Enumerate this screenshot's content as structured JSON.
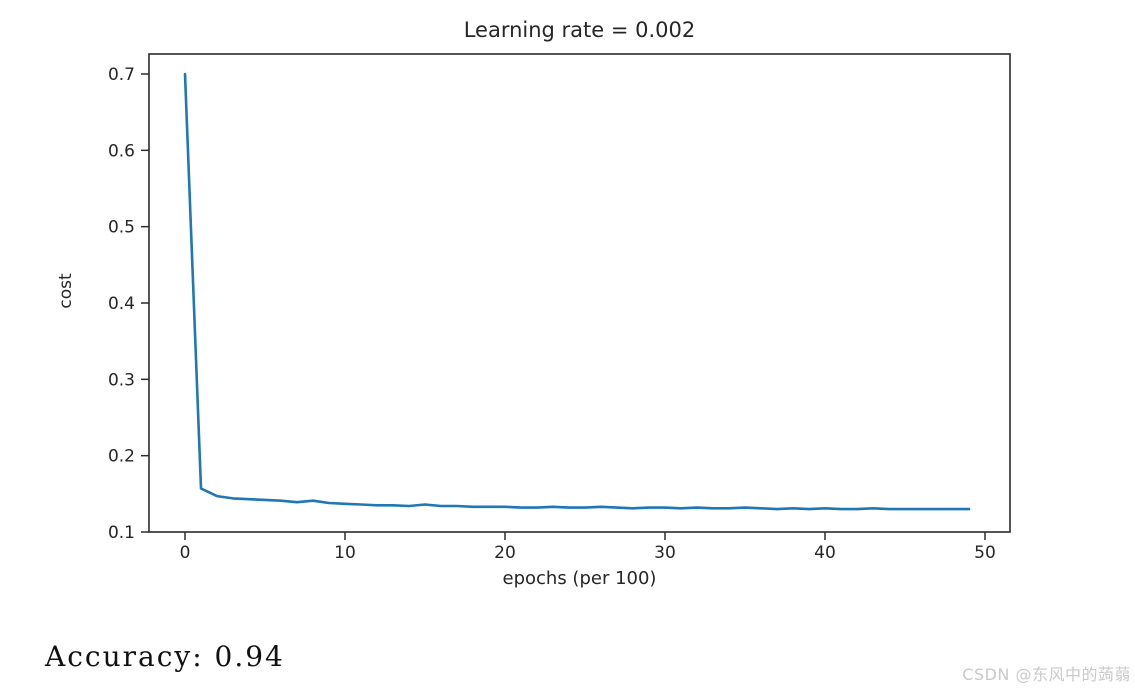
{
  "chart_data": {
    "type": "line",
    "title": "Learning rate = 0.002",
    "xlabel": "epochs (per 100)",
    "ylabel": "cost",
    "x_ticks": [
      0,
      10,
      20,
      30,
      40,
      50
    ],
    "y_ticks": [
      0.1,
      0.2,
      0.3,
      0.4,
      0.5,
      0.6,
      0.7
    ],
    "xlim": [
      -2.45,
      51.45
    ],
    "ylim": [
      0.099,
      0.729
    ],
    "grid": false,
    "legend": "none",
    "line_color": "#1f77b4",
    "x": [
      0,
      1,
      2,
      3,
      4,
      5,
      6,
      7,
      8,
      9,
      10,
      11,
      12,
      13,
      14,
      15,
      16,
      17,
      18,
      19,
      20,
      21,
      22,
      23,
      24,
      25,
      26,
      27,
      28,
      29,
      30,
      31,
      32,
      33,
      34,
      35,
      36,
      37,
      38,
      39,
      40,
      41,
      42,
      43,
      44,
      45,
      46,
      47,
      48,
      49
    ],
    "values": [
      0.7,
      0.157,
      0.147,
      0.144,
      0.143,
      0.142,
      0.141,
      0.139,
      0.141,
      0.138,
      0.137,
      0.136,
      0.135,
      0.135,
      0.134,
      0.136,
      0.134,
      0.134,
      0.133,
      0.133,
      0.133,
      0.132,
      0.132,
      0.133,
      0.132,
      0.132,
      0.133,
      0.132,
      0.131,
      0.132,
      0.132,
      0.131,
      0.132,
      0.131,
      0.131,
      0.132,
      0.131,
      0.13,
      0.131,
      0.13,
      0.131,
      0.13,
      0.13,
      0.131,
      0.13,
      0.13,
      0.13,
      0.13,
      0.13,
      0.13
    ]
  },
  "colors": {
    "spine": "#2b2b2b",
    "tick_label": "#262626"
  },
  "footer": {
    "accuracy_text": "Accuracy: 0.94",
    "watermark": "CSDN @东风中的蒟蒻"
  }
}
